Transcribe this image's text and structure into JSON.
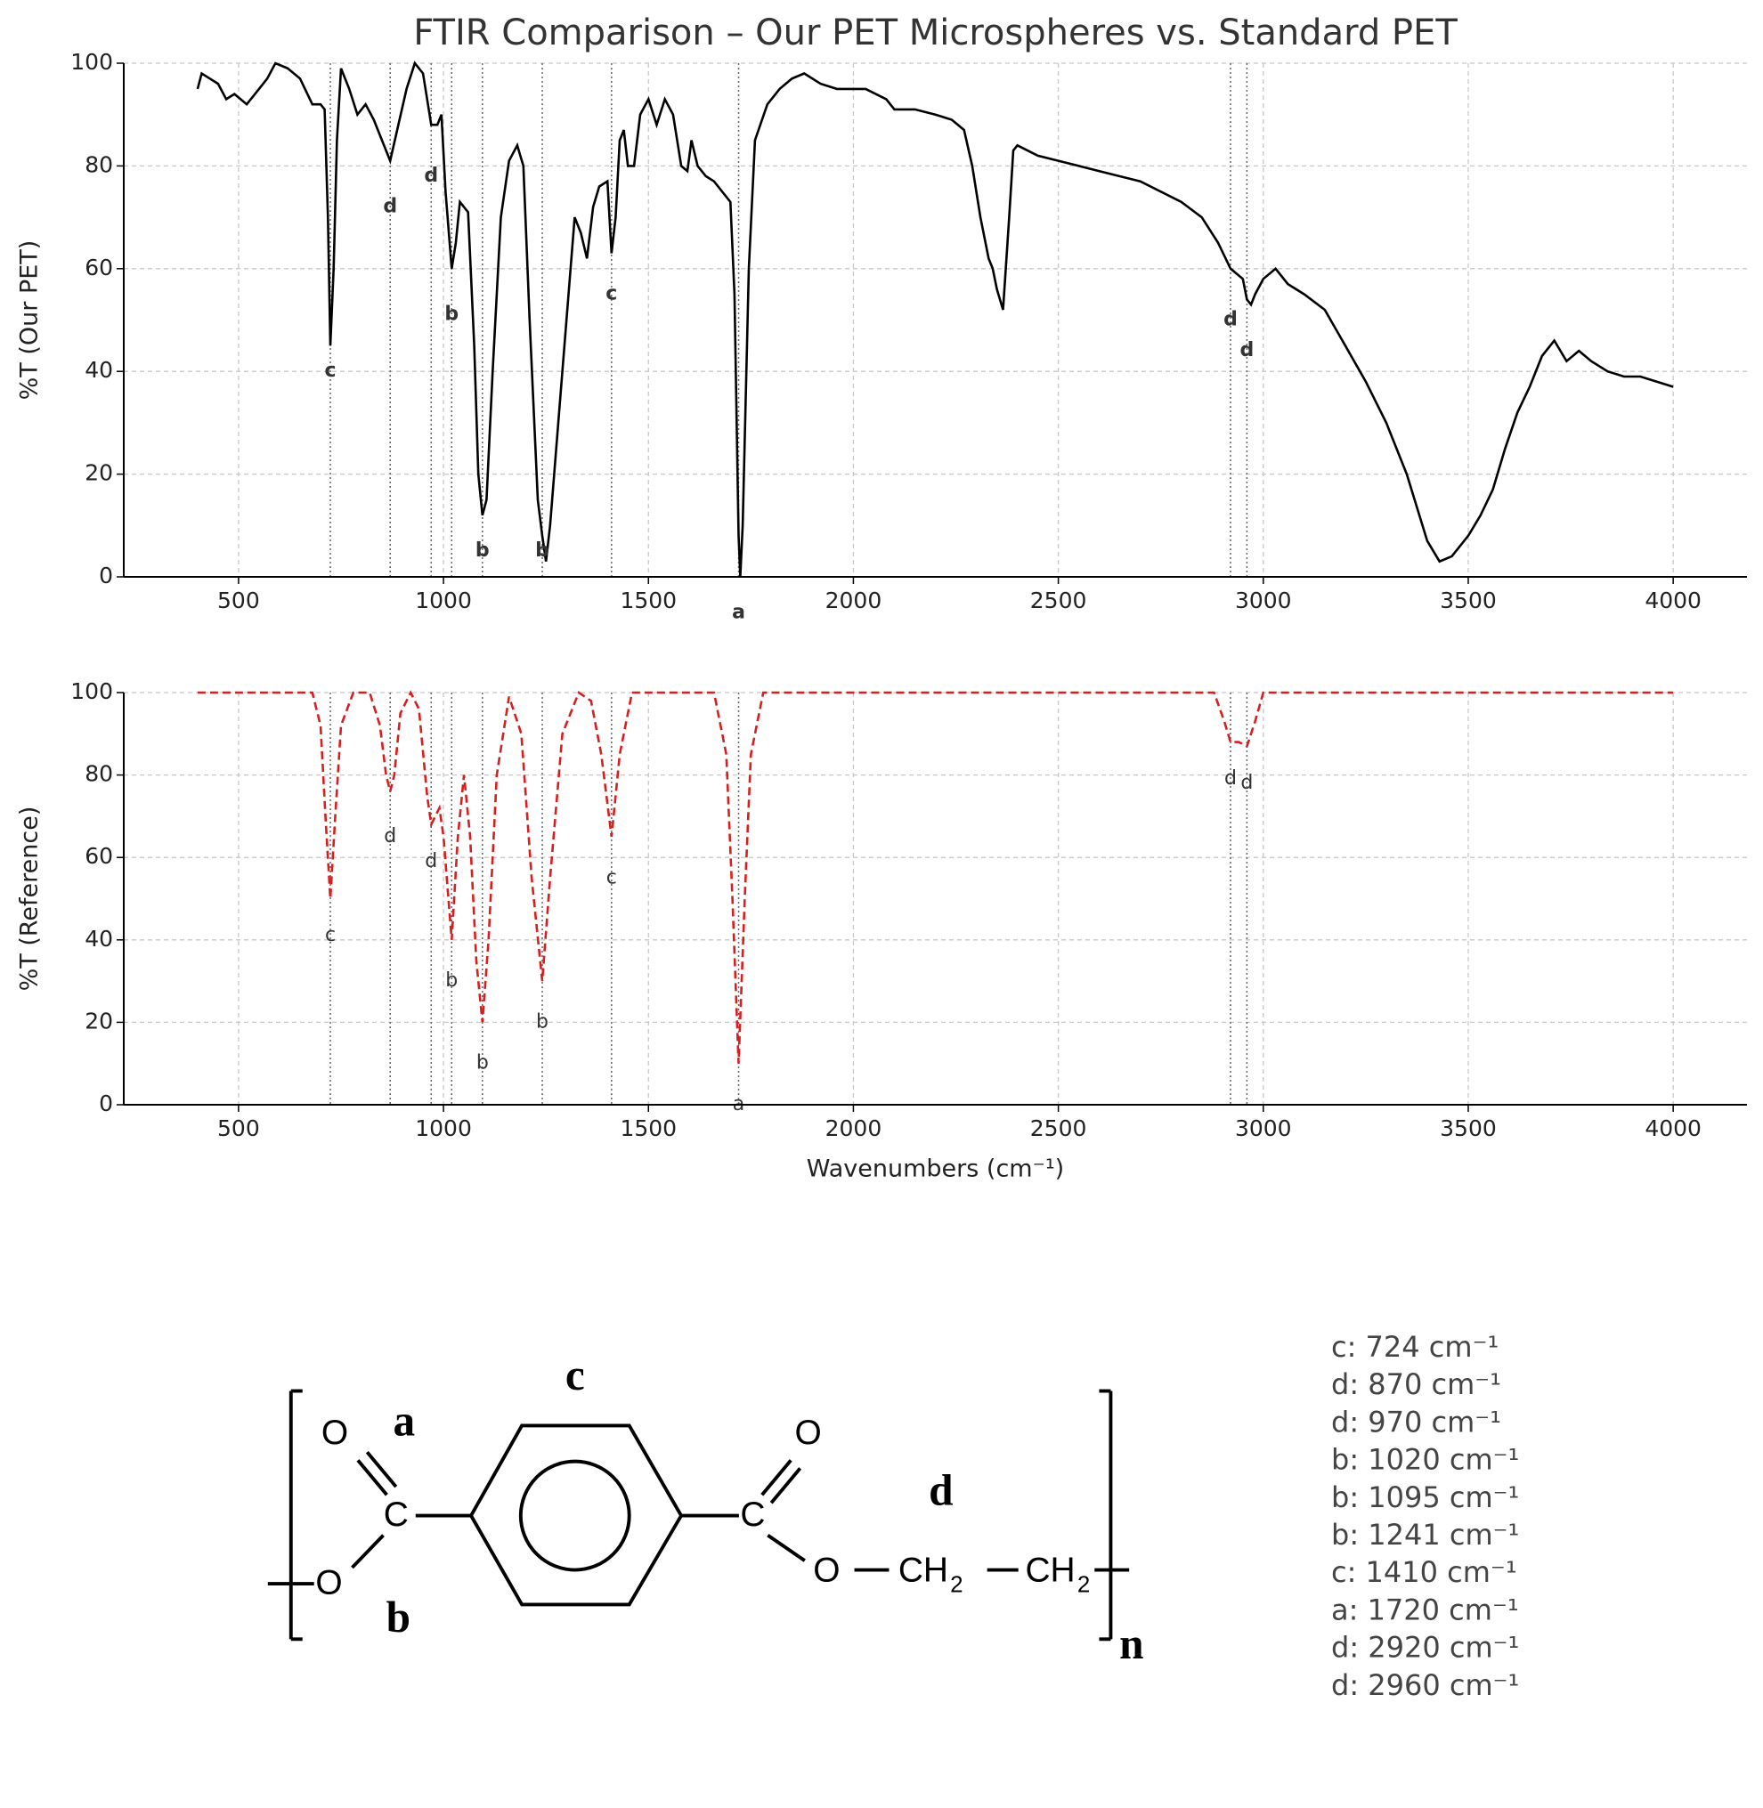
{
  "chart_data": [
    {
      "type": "line",
      "title": "FTIR Comparison – Our PET Microspheres vs. Standard PET",
      "y_label": "%T (Our PET)",
      "xlim": [
        220,
        4180
      ],
      "ylim": [
        0,
        100
      ],
      "xticks": [
        500,
        1000,
        1500,
        2000,
        2500,
        3000,
        3500,
        4000
      ],
      "yticks": [
        0,
        20,
        40,
        60,
        80,
        100
      ],
      "grid": true,
      "bold_annotations": true,
      "x": [
        400,
        410,
        430,
        450,
        470,
        490,
        520,
        550,
        570,
        590,
        620,
        650,
        680,
        700,
        710,
        718,
        724,
        732,
        740,
        750,
        770,
        790,
        810,
        830,
        850,
        870,
        890,
        910,
        930,
        950,
        970,
        985,
        995,
        1005,
        1020,
        1030,
        1040,
        1060,
        1075,
        1085,
        1095,
        1105,
        1120,
        1140,
        1160,
        1180,
        1195,
        1210,
        1230,
        1241,
        1250,
        1260,
        1280,
        1300,
        1320,
        1335,
        1350,
        1365,
        1380,
        1400,
        1410,
        1420,
        1430,
        1440,
        1450,
        1465,
        1480,
        1500,
        1520,
        1540,
        1560,
        1580,
        1595,
        1605,
        1620,
        1640,
        1660,
        1680,
        1700,
        1710,
        1720,
        1724,
        1730,
        1745,
        1760,
        1790,
        1820,
        1850,
        1880,
        1920,
        1960,
        2000,
        2030,
        2080,
        2100,
        2150,
        2200,
        2240,
        2270,
        2290,
        2310,
        2330,
        2340,
        2350,
        2365,
        2380,
        2390,
        2400,
        2450,
        2500,
        2550,
        2600,
        2700,
        2800,
        2850,
        2890,
        2920,
        2950,
        2960,
        2970,
        2980,
        3000,
        3030,
        3060,
        3100,
        3150,
        3200,
        3250,
        3300,
        3350,
        3400,
        3430,
        3460,
        3500,
        3530,
        3560,
        3590,
        3620,
        3650,
        3680,
        3710,
        3740,
        3770,
        3800,
        3840,
        3880,
        3920,
        3960,
        4000
      ],
      "series": [
        {
          "name": "Our PET",
          "color": "#000000",
          "dash": false,
          "values": [
            95,
            98,
            97,
            96,
            93,
            94,
            92,
            95,
            97,
            100,
            99,
            97,
            92,
            92,
            91,
            70,
            45,
            60,
            85,
            99,
            95,
            90,
            92,
            89,
            85,
            81,
            88,
            95,
            100,
            98,
            88,
            88,
            90,
            75,
            60,
            65,
            73,
            71,
            45,
            20,
            12,
            15,
            40,
            70,
            81,
            84,
            80,
            50,
            15,
            8,
            3,
            10,
            30,
            50,
            70,
            67,
            62,
            72,
            76,
            77,
            63,
            70,
            85,
            87,
            80,
            80,
            90,
            93,
            88,
            93,
            90,
            80,
            79,
            85,
            80,
            78,
            77,
            75,
            73,
            55,
            8,
            0,
            10,
            60,
            85,
            92,
            95,
            97,
            98,
            96,
            95,
            95,
            95,
            93,
            91,
            91,
            90,
            89,
            87,
            80,
            70,
            62,
            60,
            56,
            52,
            70,
            83,
            84,
            82,
            81,
            80,
            79,
            77,
            73,
            70,
            65,
            60,
            58,
            54,
            53,
            55,
            58,
            60,
            57,
            55,
            52,
            45,
            38,
            30,
            20,
            7,
            3,
            4,
            8,
            12,
            17,
            25,
            32,
            37,
            43,
            46,
            42,
            44,
            42,
            40,
            39,
            39,
            38,
            37
          ]
        }
      ],
      "annotations": [
        {
          "text": "c",
          "x": 724,
          "y": 40
        },
        {
          "text": "d",
          "x": 870,
          "y": 72
        },
        {
          "text": "d",
          "x": 970,
          "y": 78
        },
        {
          "text": "b",
          "x": 1020,
          "y": 51
        },
        {
          "text": "b",
          "x": 1095,
          "y": 5
        },
        {
          "text": "b",
          "x": 1241,
          "y": 5
        },
        {
          "text": "c",
          "x": 1410,
          "y": 55
        },
        {
          "text": "a",
          "x": 1720,
          "y": -7
        },
        {
          "text": "d",
          "x": 2920,
          "y": 50
        },
        {
          "text": "d",
          "x": 2960,
          "y": 44
        }
      ]
    },
    {
      "type": "line",
      "y_label": "%T (Reference)",
      "x_label": "Wavenumbers (cm⁻¹)",
      "xlim": [
        220,
        4180
      ],
      "ylim": [
        0,
        100
      ],
      "xticks": [
        500,
        1000,
        1500,
        2000,
        2500,
        3000,
        3500,
        4000
      ],
      "yticks": [
        0,
        20,
        40,
        60,
        80,
        100
      ],
      "grid": true,
      "bold_annotations": false,
      "x": [
        400,
        680,
        700,
        712,
        724,
        736,
        750,
        780,
        820,
        845,
        860,
        870,
        880,
        895,
        920,
        940,
        960,
        970,
        980,
        990,
        1000,
        1020,
        1035,
        1050,
        1065,
        1080,
        1095,
        1110,
        1130,
        1160,
        1190,
        1215,
        1241,
        1260,
        1290,
        1330,
        1360,
        1385,
        1410,
        1430,
        1460,
        1660,
        1690,
        1705,
        1720,
        1735,
        1750,
        1780,
        2880,
        2905,
        2920,
        2940,
        2960,
        2980,
        3000,
        4000
      ],
      "series": [
        {
          "name": "Reference",
          "color": "#d62020",
          "dash": true,
          "values": [
            100,
            100,
            92,
            70,
            50,
            70,
            92,
            100,
            100,
            92,
            80,
            76,
            80,
            95,
            100,
            96,
            75,
            68,
            70,
            72,
            65,
            40,
            65,
            80,
            65,
            35,
            20,
            40,
            80,
            99,
            90,
            55,
            30,
            55,
            90,
            100,
            98,
            85,
            65,
            85,
            100,
            100,
            85,
            50,
            10,
            50,
            85,
            100,
            100,
            93,
            88,
            88,
            87,
            93,
            100,
            100
          ]
        }
      ],
      "annotations": [
        {
          "text": "c",
          "x": 724,
          "y": 41
        },
        {
          "text": "d",
          "x": 870,
          "y": 65
        },
        {
          "text": "d",
          "x": 970,
          "y": 59
        },
        {
          "text": "b",
          "x": 1020,
          "y": 30
        },
        {
          "text": "b",
          "x": 1095,
          "y": 10
        },
        {
          "text": "b",
          "x": 1241,
          "y": 20
        },
        {
          "text": "c",
          "x": 1410,
          "y": 55
        },
        {
          "text": "a",
          "x": 1720,
          "y": 0
        },
        {
          "text": "d",
          "x": 2920,
          "y": 79
        },
        {
          "text": "d",
          "x": 2960,
          "y": 78
        }
      ]
    }
  ],
  "assignments": [
    "c: 724 cm⁻¹",
    "d: 870 cm⁻¹",
    "d: 970 cm⁻¹",
    "b: 1020 cm⁻¹",
    "b: 1095 cm⁻¹",
    "b: 1241 cm⁻¹",
    "c: 1410 cm⁻¹",
    "a: 1720 cm⁻¹",
    "d: 2920 cm⁻¹",
    "d: 2960 cm⁻¹"
  ],
  "structure": {
    "atoms": [
      "O",
      "C",
      "O",
      "C",
      "O",
      "O",
      "CH",
      "CH"
    ],
    "subscripts": [
      "2",
      "2"
    ],
    "bond_labels": [
      "a",
      "c",
      "b",
      "d"
    ],
    "repeat": "n"
  }
}
